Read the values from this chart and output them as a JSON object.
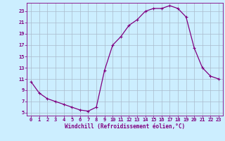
{
  "x": [
    0,
    1,
    2,
    3,
    4,
    5,
    6,
    7,
    8,
    9,
    10,
    11,
    12,
    13,
    14,
    15,
    16,
    17,
    18,
    19,
    20,
    21,
    22,
    23
  ],
  "y": [
    10.5,
    8.5,
    7.5,
    7.0,
    6.5,
    6.0,
    5.5,
    5.3,
    6.0,
    12.5,
    17.0,
    18.5,
    20.5,
    21.5,
    23.0,
    23.5,
    23.5,
    24.0,
    23.5,
    22.0,
    16.5,
    13.0,
    11.5,
    11.0
  ],
  "line_color": "#800080",
  "marker": "+",
  "marker_size": 3,
  "marker_lw": 0.8,
  "bg_color": "#cceeff",
  "grid_color": "#aabbcc",
  "xlabel": "Windchill (Refroidissement éolien,°C)",
  "xlabel_color": "#800080",
  "tick_color": "#800080",
  "spine_color": "#800080",
  "yticks": [
    5,
    7,
    9,
    11,
    13,
    15,
    17,
    19,
    21,
    23
  ],
  "xticks": [
    0,
    1,
    2,
    3,
    4,
    5,
    6,
    7,
    8,
    9,
    10,
    11,
    12,
    13,
    14,
    15,
    16,
    17,
    18,
    19,
    20,
    21,
    22,
    23
  ],
  "ylim": [
    4.5,
    24.5
  ],
  "xlim": [
    -0.5,
    23.5
  ],
  "tick_fontsize": 5.0,
  "xlabel_fontsize": 5.5,
  "linewidth": 0.9
}
